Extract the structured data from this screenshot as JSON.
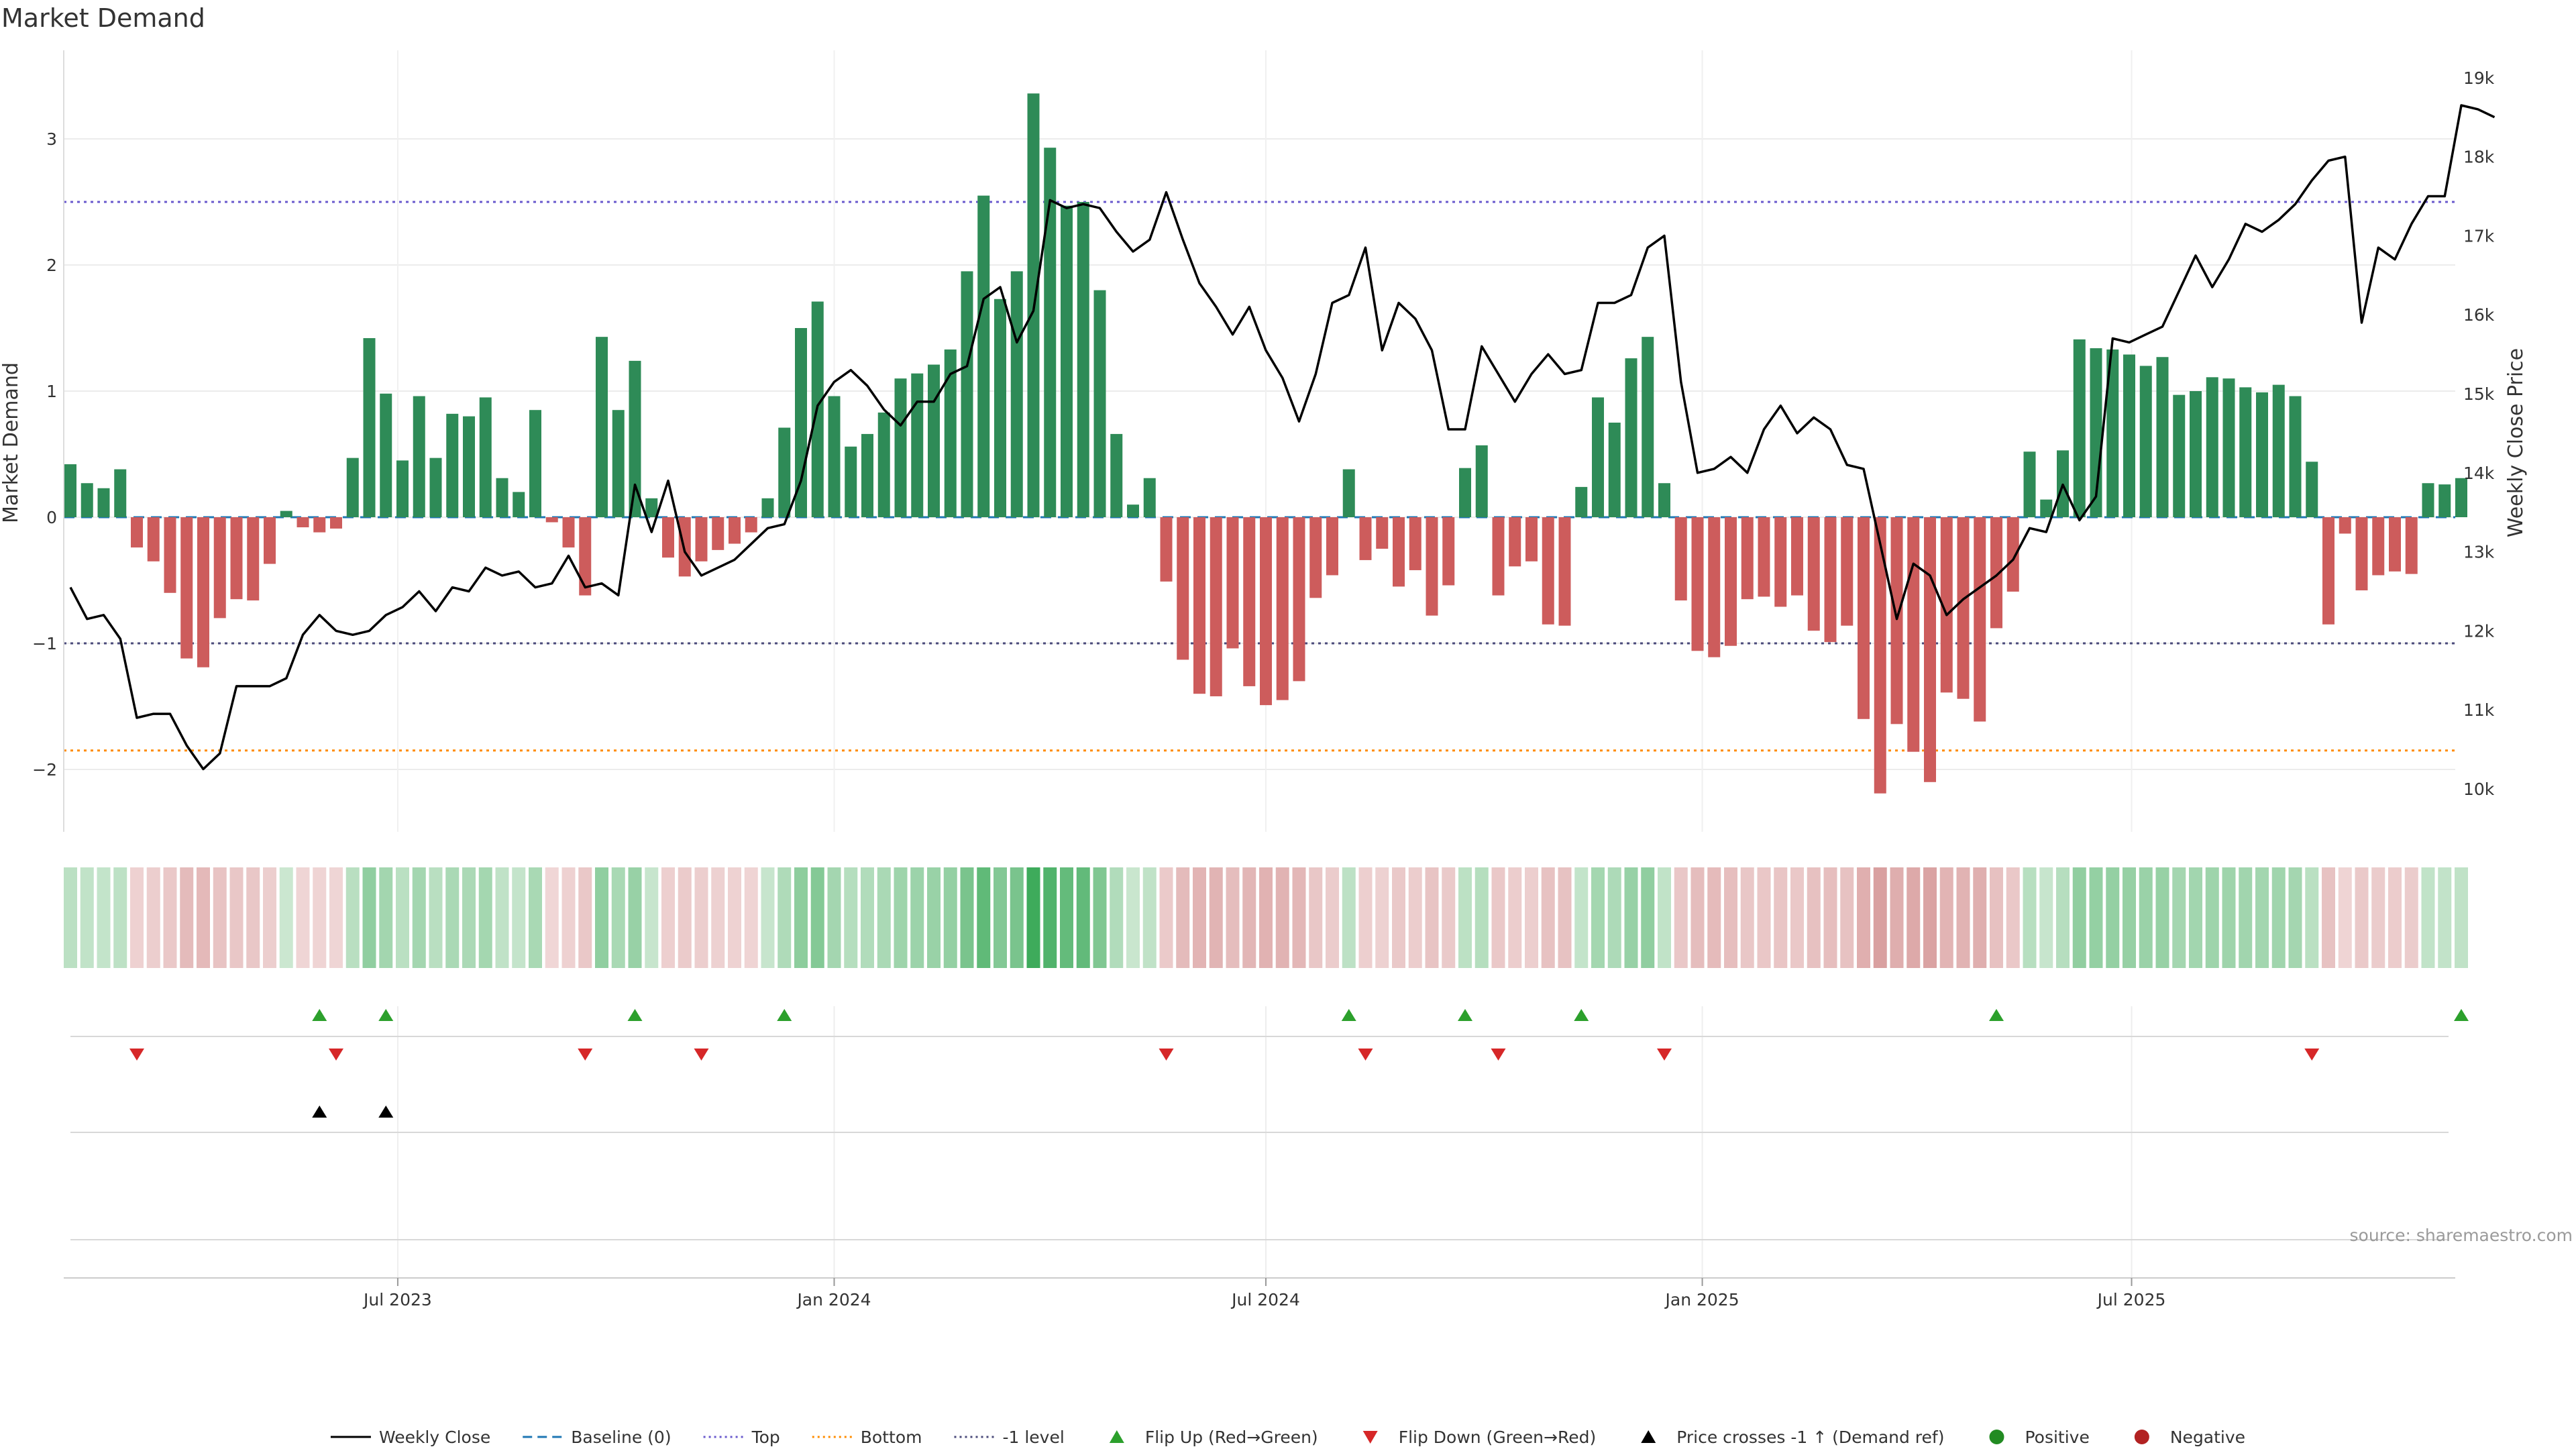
{
  "title": "Market Demand",
  "source_label": "source: sharemaestro.com",
  "chart_data": {
    "type": "bar",
    "start_date": "2023-02-13",
    "interval_days": 7,
    "left_axis": {
      "label": "Market Demand",
      "range": [
        -2.5,
        3.5
      ],
      "ticks": [
        3,
        2,
        1,
        0,
        -1,
        -2
      ],
      "tick_labels": [
        "3",
        "2",
        "1",
        "0",
        "−1",
        "−2"
      ]
    },
    "right_axis": {
      "label": "Weekly Close Price",
      "range": [
        9500,
        19250
      ],
      "ticks": [
        10000,
        11000,
        12000,
        13000,
        14000,
        15000,
        16000,
        17000,
        18000,
        19000
      ],
      "tick_labels": [
        "10k",
        "11k",
        "12k",
        "13k",
        "14k",
        "15k",
        "16k",
        "17k",
        "18k",
        "19k"
      ]
    },
    "x_axis": {
      "ticks": [
        "2023-07-01",
        "2024-01-01",
        "2024-07-01",
        "2025-01-01",
        "2025-07-01"
      ],
      "tick_labels": [
        "Jul 2023",
        "Jan 2024",
        "Jul 2024",
        "Jan 2025",
        "Jul 2025"
      ]
    },
    "reference_lines": [
      {
        "name": "Baseline (0)",
        "value": 0,
        "color": "#1f77b4",
        "style": "dashed"
      },
      {
        "name": "Top",
        "value": 2.5,
        "color": "#6a5acd",
        "style": "dotted"
      },
      {
        "name": "Bottom",
        "value": -1.85,
        "color": "#ff8c00",
        "style": "dotted"
      },
      {
        "name": "-1 level",
        "value": -1,
        "color": "#4a4a7a",
        "style": "dotted"
      }
    ],
    "series": [
      {
        "name": "Market Demand",
        "type": "bar",
        "positive_color": "#2e8b57",
        "negative_color": "#cd5c5c",
        "values": [
          0.42,
          0.27,
          0.23,
          0.38,
          -0.24,
          -0.35,
          -0.6,
          -1.12,
          -1.19,
          -0.8,
          -0.65,
          -0.66,
          -0.37,
          0.05,
          -0.08,
          -0.12,
          -0.09,
          0.47,
          1.42,
          0.98,
          0.45,
          0.96,
          0.47,
          0.82,
          0.8,
          0.95,
          0.31,
          0.2,
          0.85,
          -0.04,
          -0.24,
          -0.62,
          1.43,
          0.85,
          1.24,
          0.15,
          -0.32,
          -0.47,
          -0.35,
          -0.26,
          -0.21,
          -0.12,
          0.15,
          0.71,
          1.5,
          1.71,
          0.96,
          0.56,
          0.66,
          0.83,
          1.1,
          1.14,
          1.21,
          1.33,
          1.95,
          2.55,
          1.73,
          1.95,
          3.36,
          2.93,
          2.47,
          2.5,
          1.8,
          0.66,
          0.1,
          0.31,
          -0.51,
          -1.13,
          -1.4,
          -1.42,
          -1.04,
          -1.34,
          -1.49,
          -1.45,
          -1.3,
          -0.64,
          -0.46,
          0.38,
          -0.34,
          -0.25,
          -0.55,
          -0.42,
          -0.78,
          -0.54,
          0.39,
          0.57,
          -0.62,
          -0.39,
          -0.35,
          -0.85,
          -0.86,
          0.24,
          0.95,
          0.75,
          1.26,
          1.43,
          0.27,
          -0.66,
          -1.06,
          -1.11,
          -1.02,
          -0.65,
          -0.63,
          -0.71,
          -0.62,
          -0.9,
          -0.99,
          -0.86,
          -1.6,
          -2.19,
          -1.64,
          -1.86,
          -2.1,
          -1.39,
          -1.44,
          -1.62,
          -0.88,
          -0.59,
          0.52,
          0.14,
          0.53,
          1.41,
          1.34,
          1.33,
          1.29,
          1.2,
          1.27,
          0.97,
          1.0,
          1.11,
          1.1,
          1.03,
          0.99,
          1.05,
          0.96,
          0.44,
          -0.85,
          -0.13,
          -0.58,
          -0.46,
          -0.43,
          -0.45,
          0.27,
          0.26,
          0.31
        ]
      },
      {
        "name": "Weekly Close",
        "type": "line",
        "axis": "right",
        "color": "#000000",
        "values": [
          12550,
          12150,
          12200,
          11900,
          10900,
          10950,
          10950,
          10550,
          10250,
          10450,
          11300,
          11300,
          11300,
          11400,
          11950,
          12200,
          12000,
          11950,
          12000,
          12200,
          12300,
          12500,
          12250,
          12550,
          12500,
          12800,
          12700,
          12750,
          12550,
          12600,
          12950,
          12550,
          12600,
          12450,
          13850,
          13250,
          13900,
          13000,
          12700,
          12800,
          12900,
          13100,
          13300,
          13350,
          13900,
          14850,
          15150,
          15300,
          15100,
          14800,
          14600,
          14900,
          14900,
          15250,
          15350,
          16200,
          16350,
          15650,
          16050,
          17450,
          17350,
          17400,
          17350,
          17050,
          16800,
          16950,
          17550,
          16950,
          16400,
          16100,
          15750,
          16100,
          15550,
          15200,
          14650,
          15250,
          16150,
          16250,
          16850,
          15550,
          16150,
          15950,
          15550,
          14550,
          14550,
          15600,
          15250,
          14900,
          15250,
          15500,
          15250,
          15300,
          16150,
          16150,
          16250,
          16850,
          17000,
          15150,
          14000,
          14050,
          14200,
          14000,
          14550,
          14850,
          14500,
          14700,
          14550,
          14100,
          14050,
          13100,
          12150,
          12850,
          12700,
          12200,
          12400,
          12550,
          12700,
          12900,
          13300,
          13250,
          13850,
          13400,
          13700,
          15700,
          15650,
          15750,
          15850,
          16300,
          16750,
          16350,
          16700,
          17150,
          17050,
          17200,
          17400,
          17700,
          17950,
          18000,
          15900,
          16850,
          16700,
          17150,
          17500,
          17500,
          18650,
          18600,
          18500
        ]
      }
    ],
    "demand_strip": {
      "label": "demand heat strip",
      "values_ref": "series.0"
    },
    "event_rows": [
      {
        "name": "Flip Up (Red→Green)",
        "marker": "triangle-up",
        "color": "#2ca02c",
        "dates": [
          "2023-05-29",
          "2023-06-26",
          "2023-10-09",
          "2023-12-11",
          "2024-08-05",
          "2024-09-23",
          "2024-11-11",
          "2025-05-05",
          "2025-11-17"
        ]
      },
      {
        "name": "Flip Down (Green→Red)",
        "marker": "triangle-down",
        "color": "#d62728",
        "dates": [
          "2023-03-13",
          "2023-06-05",
          "2023-09-18",
          "2023-11-06",
          "2024-05-20",
          "2024-08-12",
          "2024-10-07",
          "2024-12-16",
          "2025-09-15"
        ]
      },
      {
        "name": "Price crosses -1 ↑ (Demand ref)",
        "marker": "triangle-up",
        "color": "#000000",
        "dates": [
          "2023-05-29",
          "2023-06-26"
        ]
      },
      {
        "name": "Positive / Negative",
        "marker": "circle",
        "dates": []
      }
    ]
  },
  "legend": [
    {
      "label": "Weekly Close",
      "kind": "line",
      "color": "#000000",
      "dash": ""
    },
    {
      "label": "Baseline (0)",
      "kind": "line",
      "color": "#1f77b4",
      "dash": "14,8"
    },
    {
      "label": "Top",
      "kind": "line",
      "color": "#6a5acd",
      "dash": "3,5"
    },
    {
      "label": "Bottom",
      "kind": "line",
      "color": "#ff8c00",
      "dash": "3,5"
    },
    {
      "label": "-1 level",
      "kind": "line",
      "color": "#4a4a7a",
      "dash": "3,5"
    },
    {
      "label": "Flip Up (Red→Green)",
      "kind": "tri-up",
      "color": "#2ca02c"
    },
    {
      "label": "Flip Down (Green→Red)",
      "kind": "tri-down",
      "color": "#d62728"
    },
    {
      "label": "Price crosses -1 ↑ (Demand ref)",
      "kind": "tri-up",
      "color": "#000000"
    },
    {
      "label": "Positive",
      "kind": "dot",
      "color": "#228b22"
    },
    {
      "label": "Negative",
      "kind": "dot",
      "color": "#b22222"
    }
  ]
}
